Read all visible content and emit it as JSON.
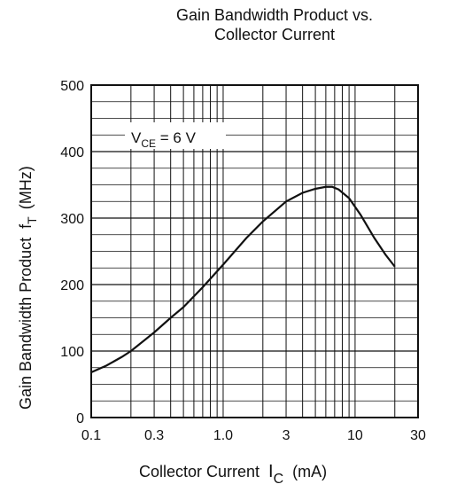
{
  "chart_data": {
    "type": "line",
    "title_lines": [
      "Gain Bandwidth Product vs.",
      "Collector Current"
    ],
    "xlabel": "Collector Current",
    "xlabel_symbol": "I",
    "xlabel_symbol_sub": "C",
    "xlabel_unit": "(mA)",
    "ylabel": "Gain Bandwidth Product",
    "ylabel_symbol": "f",
    "ylabel_symbol_sub": "T",
    "ylabel_unit": "(MHz)",
    "x_scale": "log",
    "xlim": [
      0.1,
      30
    ],
    "ylim": [
      0,
      500
    ],
    "x_ticks": [
      0.1,
      0.3,
      1.0,
      3,
      10,
      30
    ],
    "x_tick_labels": [
      "0.1",
      "0.3",
      "1.0",
      "3",
      "10",
      "30"
    ],
    "y_ticks": [
      0,
      100,
      200,
      300,
      400,
      500
    ],
    "y_tick_labels": [
      "0",
      "100",
      "200",
      "300",
      "400",
      "500"
    ],
    "grid": true,
    "annotation": {
      "main": "V",
      "sub": "CE",
      "rest": " = 6 V"
    },
    "series": [
      {
        "x": [
          0.1,
          0.13,
          0.17,
          0.2,
          0.3,
          0.4,
          0.5,
          0.7,
          1.0,
          1.5,
          2.0,
          3.0,
          4.0,
          5.0,
          6.0,
          6.7,
          7.5,
          9.0,
          11.0,
          14.0,
          17.0,
          20.0
        ],
        "y": [
          68,
          78,
          91,
          100,
          128,
          150,
          166,
          196,
          230,
          270,
          295,
          325,
          338,
          344,
          347,
          347,
          343,
          330,
          305,
          270,
          245,
          227
        ]
      }
    ]
  }
}
